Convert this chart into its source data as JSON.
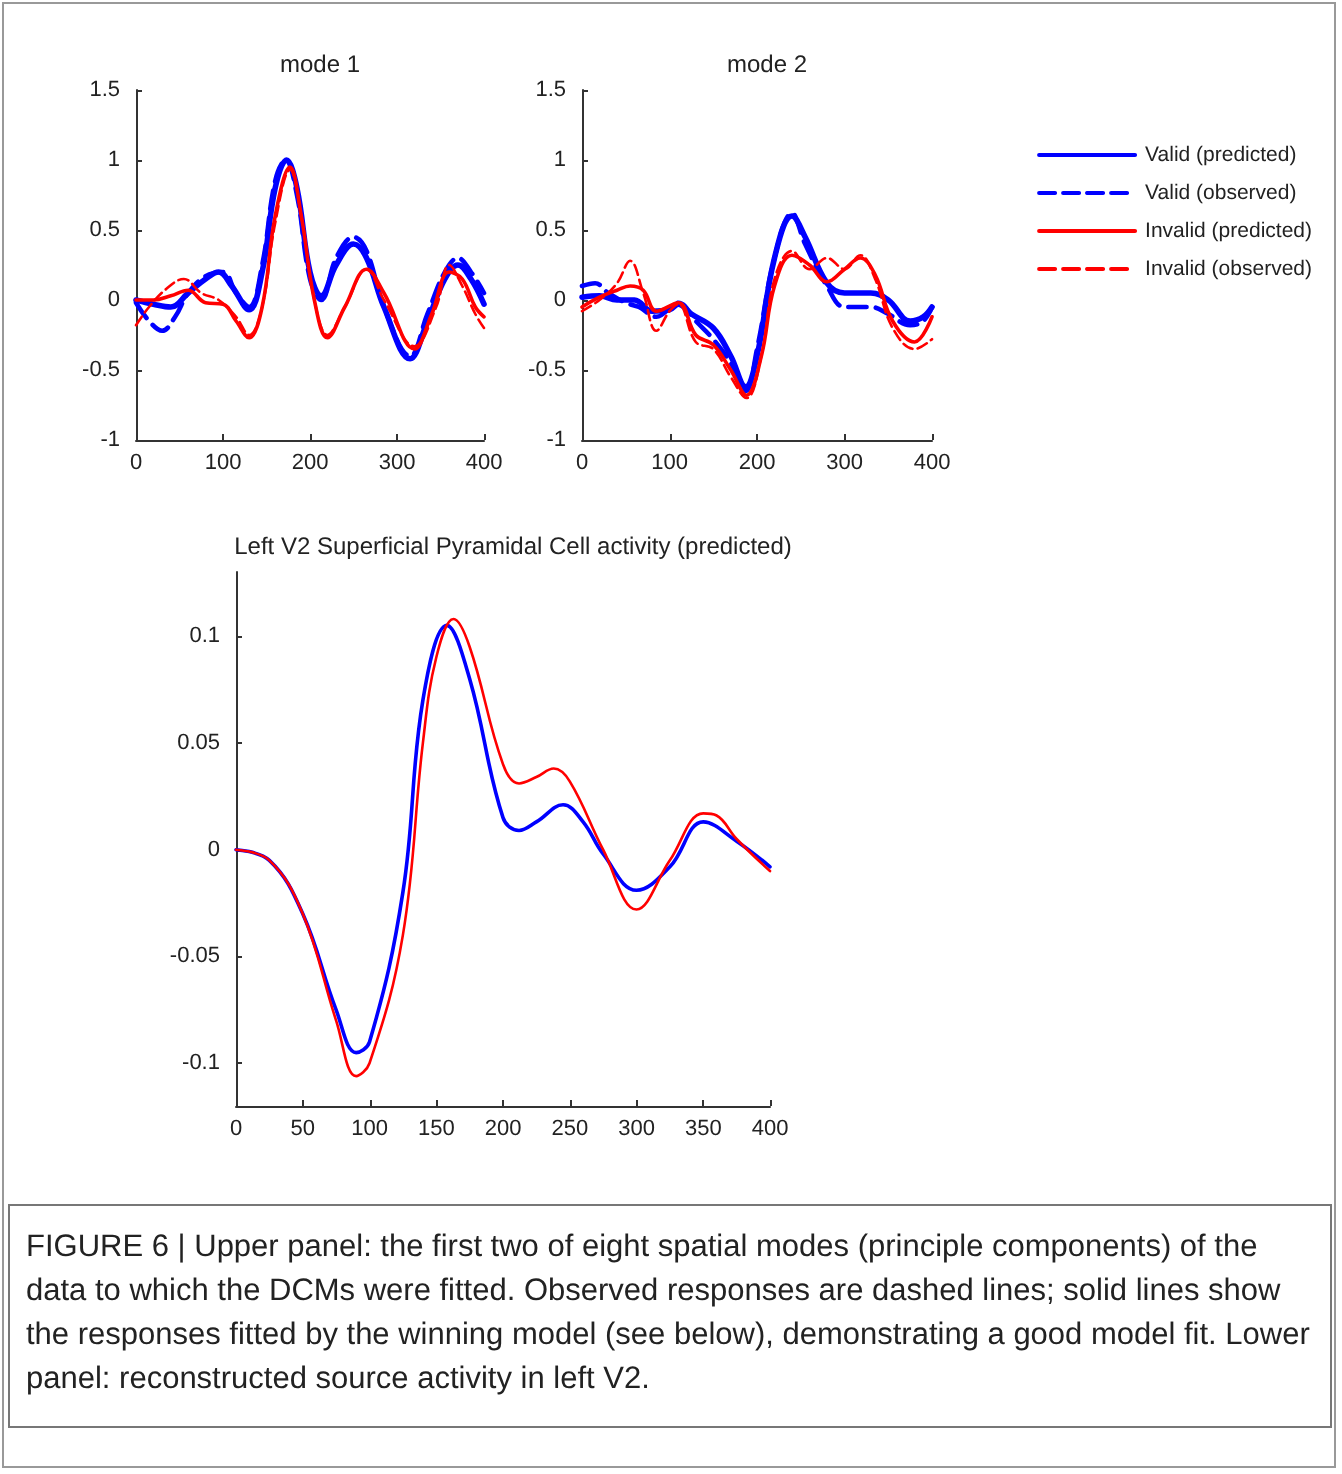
{
  "chart_data": [
    {
      "type": "line",
      "title": "mode 1",
      "xlim": [
        0,
        400
      ],
      "xticks": [
        0,
        100,
        200,
        300,
        400
      ],
      "ylim": [
        -1,
        1.5
      ],
      "yticks": [
        -1,
        -0.5,
        0,
        0.5,
        1,
        1.5
      ],
      "grid": false,
      "legend": false,
      "series": [
        {
          "color": "#0000ff",
          "line_style": "solid",
          "x": [
            0,
            20,
            40,
            60,
            80,
            95,
            110,
            130,
            145,
            160,
            173,
            185,
            200,
            213,
            230,
            250,
            265,
            285,
            315,
            335,
            355,
            370,
            385,
            400
          ],
          "values": [
            0,
            -0.03,
            -0.05,
            0.05,
            0.15,
            0.2,
            0.1,
            -0.07,
            0.2,
            0.8,
            1.0,
            0.8,
            0.2,
            0.03,
            0.25,
            0.4,
            0.3,
            -0.05,
            -0.42,
            -0.15,
            0.15,
            0.25,
            0.15,
            -0.03
          ]
        },
        {
          "color": "#0000ff",
          "line_style": "dashed",
          "x": [
            0,
            15,
            30,
            45,
            60,
            80,
            100,
            115,
            130,
            145,
            160,
            172,
            185,
            200,
            213,
            230,
            250,
            265,
            285,
            315,
            335,
            355,
            370,
            385,
            400
          ],
          "values": [
            -0.02,
            -0.15,
            -0.22,
            -0.12,
            0.05,
            0.17,
            0.2,
            0.05,
            -0.05,
            0.25,
            0.85,
            1.0,
            0.75,
            0.15,
            0.0,
            0.3,
            0.45,
            0.35,
            -0.05,
            -0.4,
            -0.1,
            0.2,
            0.3,
            0.2,
            0.05
          ]
        },
        {
          "color": "#ff0000",
          "line_style": "solid",
          "x": [
            0,
            20,
            40,
            60,
            80,
            100,
            115,
            130,
            145,
            160,
            177,
            190,
            205,
            220,
            240,
            265,
            285,
            320,
            340,
            360,
            375,
            390,
            400
          ],
          "values": [
            0,
            0.0,
            0.03,
            0.07,
            -0.02,
            -0.03,
            -0.15,
            -0.27,
            -0.05,
            0.6,
            0.95,
            0.6,
            0.0,
            -0.27,
            -0.05,
            0.22,
            0.05,
            -0.35,
            -0.1,
            0.2,
            0.15,
            -0.05,
            -0.12
          ]
        },
        {
          "color": "#ff0000",
          "line_style": "dashed",
          "x": [
            0,
            15,
            35,
            55,
            75,
            95,
            115,
            130,
            145,
            160,
            177,
            190,
            205,
            220,
            240,
            265,
            285,
            320,
            345,
            360,
            375,
            390,
            400
          ],
          "values": [
            -0.18,
            -0.05,
            0.08,
            0.15,
            0.05,
            0.0,
            -0.12,
            -0.25,
            -0.05,
            0.55,
            0.93,
            0.6,
            0.0,
            -0.25,
            -0.05,
            0.22,
            0.0,
            -0.33,
            -0.05,
            0.25,
            0.1,
            -0.1,
            -0.2
          ]
        }
      ]
    },
    {
      "type": "line",
      "title": "mode 2",
      "xlim": [
        0,
        400
      ],
      "xticks": [
        0,
        100,
        200,
        300,
        400
      ],
      "ylim": [
        -1,
        1.5
      ],
      "yticks": [
        -1,
        -0.5,
        0,
        0.5,
        1,
        1.5
      ],
      "grid": false,
      "legend": "right",
      "series": [
        {
          "name": "Valid (predicted)",
          "color": "#0000ff",
          "line_style": "solid",
          "x": [
            0,
            20,
            40,
            60,
            80,
            100,
            110,
            125,
            150,
            170,
            187,
            200,
            220,
            240,
            255,
            280,
            300,
            330,
            350,
            375,
            390,
            400
          ],
          "values": [
            0.02,
            0.03,
            0.0,
            0.0,
            -0.08,
            -0.07,
            -0.03,
            -0.1,
            -0.2,
            -0.4,
            -0.62,
            -0.4,
            0.3,
            0.6,
            0.45,
            0.12,
            0.05,
            0.05,
            0.0,
            -0.15,
            -0.12,
            -0.05
          ]
        },
        {
          "name": "Valid (observed)",
          "color": "#0000ff",
          "line_style": "dashed",
          "x": [
            0,
            15,
            30,
            50,
            65,
            85,
            110,
            130,
            150,
            170,
            187,
            200,
            220,
            240,
            255,
            280,
            300,
            330,
            350,
            375,
            390,
            400
          ],
          "values": [
            0.1,
            0.12,
            0.05,
            -0.02,
            -0.05,
            -0.12,
            -0.02,
            -0.15,
            -0.28,
            -0.45,
            -0.65,
            -0.35,
            0.3,
            0.62,
            0.4,
            0.1,
            -0.05,
            -0.05,
            -0.1,
            -0.18,
            -0.15,
            -0.05
          ]
        },
        {
          "name": "Invalid (predicted)",
          "color": "#ff0000",
          "line_style": "solid",
          "x": [
            0,
            20,
            40,
            55,
            70,
            85,
            110,
            130,
            150,
            170,
            188,
            205,
            220,
            240,
            260,
            280,
            300,
            318,
            335,
            355,
            380,
            400
          ],
          "values": [
            -0.05,
            0.02,
            0.07,
            0.1,
            0.07,
            -0.08,
            -0.02,
            -0.25,
            -0.32,
            -0.5,
            -0.68,
            -0.4,
            0.1,
            0.32,
            0.25,
            0.13,
            0.22,
            0.3,
            0.18,
            -0.15,
            -0.3,
            -0.12
          ]
        },
        {
          "name": "Invalid (observed)",
          "color": "#ff0000",
          "line_style": "dashed",
          "x": [
            0,
            20,
            40,
            55,
            70,
            85,
            100,
            110,
            130,
            150,
            170,
            188,
            205,
            220,
            240,
            260,
            280,
            300,
            318,
            335,
            355,
            380,
            400
          ],
          "values": [
            -0.08,
            0.0,
            0.12,
            0.28,
            0.05,
            -0.22,
            -0.08,
            -0.03,
            -0.3,
            -0.35,
            -0.55,
            -0.7,
            -0.4,
            0.15,
            0.35,
            0.22,
            0.3,
            0.22,
            0.32,
            0.15,
            -0.2,
            -0.35,
            -0.28
          ]
        }
      ]
    },
    {
      "type": "line",
      "title": "Left V2 Superficial Pyramidal Cell activity (predicted)",
      "xlim": [
        0,
        400
      ],
      "xticks": [
        0,
        50,
        100,
        150,
        200,
        250,
        300,
        350,
        400
      ],
      "ylim": [
        -0.12,
        0.13
      ],
      "yticks": [
        -0.1,
        -0.05,
        0,
        0.05,
        0.1
      ],
      "grid": false,
      "legend": false,
      "annotations": [
        "FIGURE 6 | Upper panel: the first two of eight spatial modes (principle components) of the data to which the DCMs were fitted. Observed responses are dashed lines; solid lines show the responses fitted by the winning model (see below), demonstrating a good model fit. Lower panel: reconstructed source activity in left V2."
      ],
      "series": [
        {
          "color": "#0000ff",
          "line_style": "solid",
          "x": [
            0,
            25,
            50,
            75,
            90,
            100,
            125,
            140,
            158,
            175,
            200,
            212,
            225,
            245,
            260,
            275,
            300,
            325,
            350,
            375,
            400
          ],
          "values": [
            0,
            -0.005,
            -0.03,
            -0.075,
            -0.095,
            -0.09,
            -0.02,
            0.07,
            0.105,
            0.08,
            0.015,
            0.009,
            0.013,
            0.021,
            0.013,
            -0.002,
            -0.019,
            -0.008,
            0.013,
            0.004,
            -0.008
          ]
        },
        {
          "color": "#ff0000",
          "line_style": "solid",
          "x": [
            0,
            25,
            50,
            75,
            90,
            100,
            125,
            140,
            150,
            163,
            175,
            200,
            212,
            225,
            238,
            250,
            275,
            300,
            325,
            350,
            360,
            375,
            400
          ],
          "values": [
            0,
            -0.005,
            -0.03,
            -0.08,
            -0.106,
            -0.1,
            -0.04,
            0.05,
            0.09,
            0.108,
            0.095,
            0.04,
            0.031,
            0.034,
            0.038,
            0.032,
            0.0,
            -0.028,
            -0.005,
            0.017,
            0.016,
            0.005,
            -0.01
          ]
        }
      ]
    }
  ]
}
